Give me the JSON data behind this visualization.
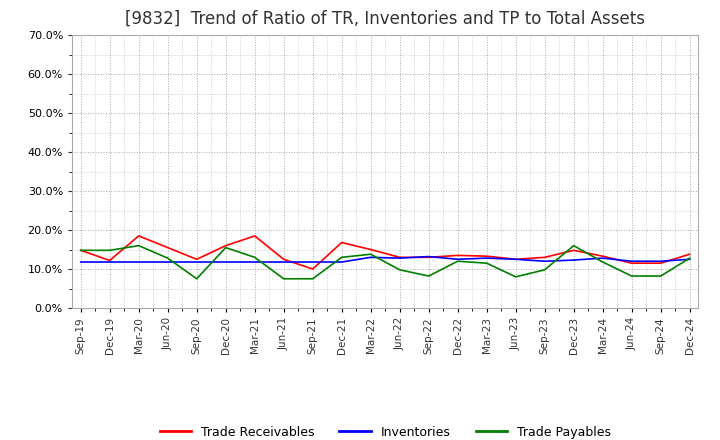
{
  "title": "[9832]  Trend of Ratio of TR, Inventories and TP to Total Assets",
  "title_fontsize": 12,
  "ylim": [
    0.0,
    0.7
  ],
  "ytick_values": [
    0.0,
    0.1,
    0.2,
    0.3,
    0.4,
    0.5,
    0.6,
    0.7
  ],
  "x_labels": [
    "Sep-19",
    "Dec-19",
    "Mar-20",
    "Jun-20",
    "Sep-20",
    "Dec-20",
    "Mar-21",
    "Jun-21",
    "Sep-21",
    "Dec-21",
    "Mar-22",
    "Jun-22",
    "Sep-22",
    "Dec-22",
    "Mar-23",
    "Jun-23",
    "Sep-23",
    "Dec-23",
    "Mar-24",
    "Jun-24",
    "Sep-24",
    "Dec-24"
  ],
  "trade_receivables": [
    0.148,
    0.122,
    0.185,
    0.155,
    0.125,
    0.16,
    0.185,
    0.125,
    0.1,
    0.168,
    0.15,
    0.13,
    0.13,
    0.135,
    0.133,
    0.125,
    0.13,
    0.148,
    0.133,
    0.115,
    0.115,
    0.138
  ],
  "inventories": [
    0.118,
    0.118,
    0.118,
    0.118,
    0.118,
    0.118,
    0.118,
    0.118,
    0.118,
    0.118,
    0.13,
    0.128,
    0.132,
    0.125,
    0.128,
    0.125,
    0.12,
    0.123,
    0.128,
    0.12,
    0.12,
    0.125
  ],
  "trade_payables": [
    0.148,
    0.148,
    0.16,
    0.128,
    0.075,
    0.155,
    0.13,
    0.075,
    0.075,
    0.13,
    0.138,
    0.098,
    0.082,
    0.12,
    0.115,
    0.08,
    0.098,
    0.16,
    0.118,
    0.082,
    0.082,
    0.128
  ],
  "color_tr": "#FF0000",
  "color_inv": "#0000FF",
  "color_tp": "#008000",
  "line_width": 1.2,
  "legend_labels": [
    "Trade Receivables",
    "Inventories",
    "Trade Payables"
  ],
  "grid_color": "#aaaaaa",
  "background_color": "#ffffff"
}
